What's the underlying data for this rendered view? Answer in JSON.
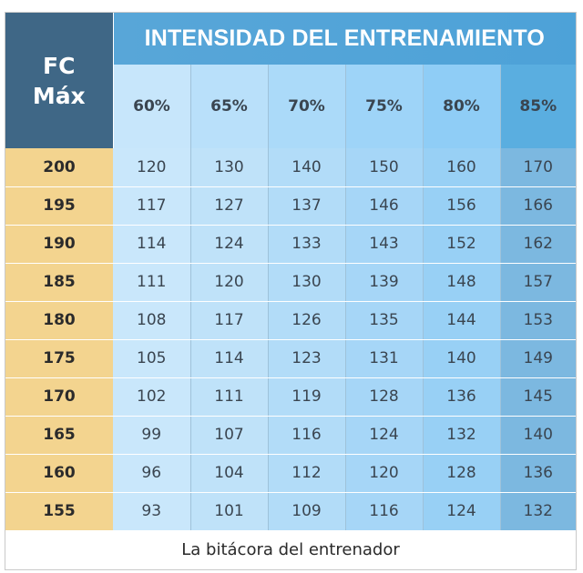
{
  "table": {
    "corner_line1": "FC",
    "corner_line2": "Máx",
    "title": "INTENSIDAD DEL ENTRENAMIENTO",
    "columns": [
      "60%",
      "65%",
      "70%",
      "75%",
      "80%",
      "85%"
    ],
    "rows": [
      {
        "fc": "200",
        "values": [
          "120",
          "130",
          "140",
          "150",
          "160",
          "170"
        ]
      },
      {
        "fc": "195",
        "values": [
          "117",
          "127",
          "137",
          "146",
          "156",
          "166"
        ]
      },
      {
        "fc": "190",
        "values": [
          "114",
          "124",
          "133",
          "143",
          "152",
          "162"
        ]
      },
      {
        "fc": "185",
        "values": [
          "111",
          "120",
          "130",
          "139",
          "148",
          "157"
        ]
      },
      {
        "fc": "180",
        "values": [
          "108",
          "117",
          "126",
          "135",
          "144",
          "153"
        ]
      },
      {
        "fc": "175",
        "values": [
          "105",
          "114",
          "123",
          "131",
          "140",
          "149"
        ]
      },
      {
        "fc": "170",
        "values": [
          "102",
          "111",
          "119",
          "128",
          "136",
          "145"
        ]
      },
      {
        "fc": "165",
        "values": [
          "99",
          "107",
          "116",
          "124",
          "132",
          "140"
        ]
      },
      {
        "fc": "160",
        "values": [
          "96",
          "104",
          "112",
          "120",
          "128",
          "136"
        ]
      },
      {
        "fc": "155",
        "values": [
          "93",
          "101",
          "109",
          "116",
          "124",
          "132"
        ]
      }
    ]
  },
  "footer": {
    "credit": "La bitácora del entrenador"
  },
  "colors": {
    "corner": "#3f6786",
    "title_band": "#4da2d8",
    "row_header": "#f3d48f",
    "last_column": "#7cb8e0"
  }
}
